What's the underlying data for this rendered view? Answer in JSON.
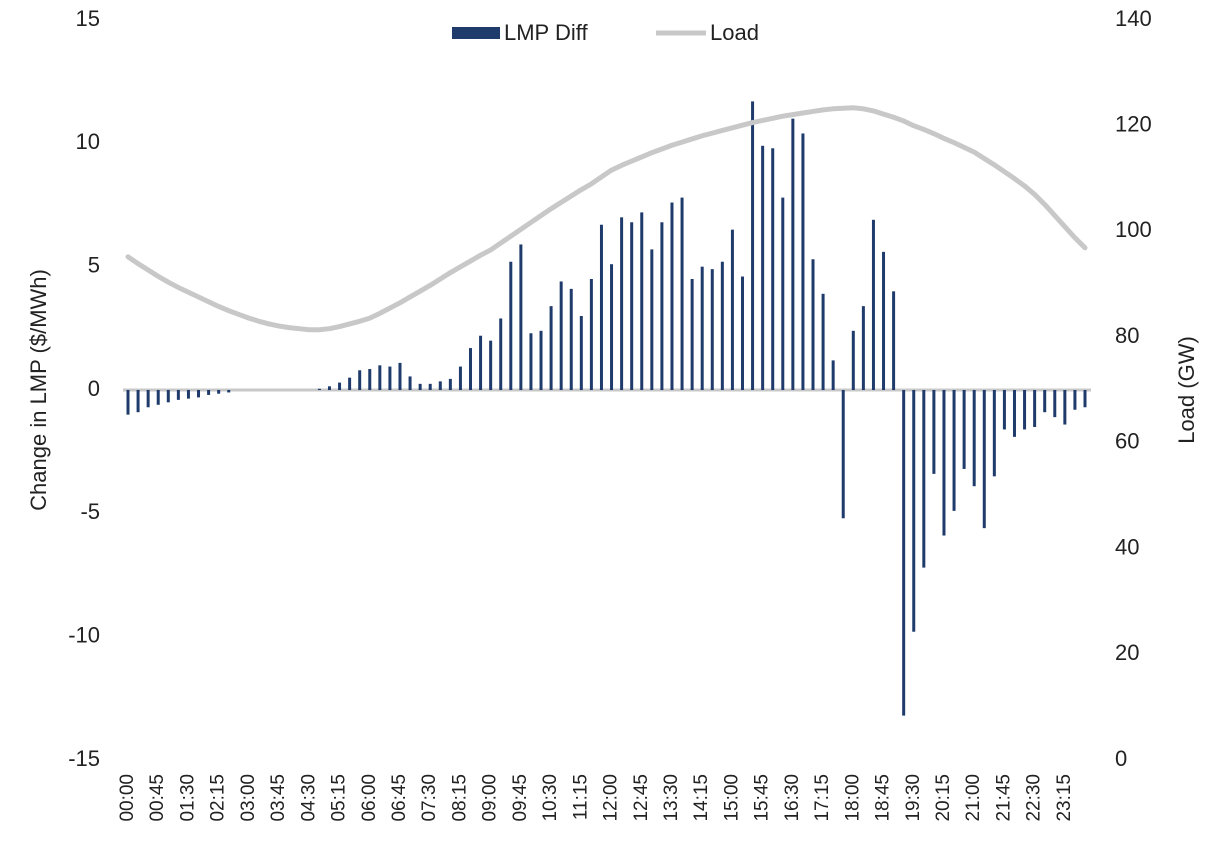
{
  "chart_data": {
    "type": "bar-line",
    "y_label": "Change in LMP ($/MWh)",
    "y2_label": "Load (GW)",
    "categories": [
      "00:00",
      null,
      null,
      "00:45",
      null,
      null,
      "01:30",
      null,
      null,
      "02:15",
      null,
      null,
      "03:00",
      null,
      null,
      "03:45",
      null,
      null,
      "04:30",
      null,
      null,
      "05:15",
      null,
      null,
      "06:00",
      null,
      null,
      "06:45",
      null,
      null,
      "07:30",
      null,
      null,
      "08:15",
      null,
      null,
      "09:00",
      null,
      null,
      "09:45",
      null,
      null,
      "10:30",
      null,
      null,
      "11:15",
      null,
      null,
      "12:00",
      null,
      null,
      "12:45",
      null,
      null,
      "13:30",
      null,
      null,
      "14:15",
      null,
      null,
      "15:00",
      null,
      null,
      "15:45",
      null,
      null,
      "16:30",
      null,
      null,
      "17:15",
      null,
      null,
      "18:00",
      null,
      null,
      "18:45",
      null,
      null,
      "19:30",
      null,
      null,
      "20:15",
      null,
      null,
      "21:00",
      null,
      null,
      "21:45",
      null,
      null,
      "22:30",
      null,
      null,
      "23:15",
      null,
      null
    ],
    "series": [
      {
        "name": "LMP Diff",
        "type": "bar",
        "color": "#1f3b6b",
        "values": [
          -1.0,
          -0.9,
          -0.7,
          -0.6,
          -0.5,
          -0.4,
          -0.35,
          -0.3,
          -0.2,
          -0.15,
          -0.1,
          0,
          0,
          0,
          0,
          0,
          0,
          0,
          0,
          0.05,
          0.15,
          0.3,
          0.5,
          0.8,
          0.85,
          1.0,
          0.95,
          1.1,
          0.55,
          0.25,
          0.25,
          0.35,
          0.45,
          0.95,
          1.7,
          2.2,
          2.0,
          2.9,
          5.2,
          5.9,
          2.3,
          2.4,
          3.4,
          4.4,
          4.1,
          3.0,
          4.5,
          6.7,
          5.1,
          7.0,
          6.8,
          7.2,
          5.7,
          6.8,
          7.6,
          7.8,
          4.5,
          5.0,
          4.9,
          5.2,
          6.5,
          4.6,
          11.7,
          9.9,
          9.8,
          7.8,
          11.0,
          10.4,
          5.3,
          3.9,
          1.2,
          -5.2,
          2.4,
          3.4,
          6.9,
          5.6,
          4.0,
          -13.2,
          -9.8,
          -7.2,
          -3.4,
          -5.9,
          -4.9,
          -3.2,
          -3.9,
          -5.6,
          -3.5,
          -1.6,
          -1.9,
          -1.6,
          -1.5,
          -0.9,
          -1.1,
          -1.4,
          -0.8,
          -0.7
        ]
      },
      {
        "name": "Load",
        "type": "line",
        "axis": "y2",
        "color": "#c8c8c8",
        "values": [
          95.2,
          93.9,
          92.7,
          91.5,
          90.4,
          89.4,
          88.5,
          87.6,
          86.7,
          85.8,
          85.0,
          84.3,
          83.6,
          83.0,
          82.5,
          82.1,
          81.8,
          81.6,
          81.4,
          81.4,
          81.6,
          82.0,
          82.5,
          83.0,
          83.6,
          84.5,
          85.5,
          86.5,
          87.6,
          88.7,
          89.8,
          91.0,
          92.2,
          93.3,
          94.4,
          95.5,
          96.5,
          97.8,
          99.1,
          100.4,
          101.7,
          103.0,
          104.3,
          105.5,
          106.7,
          107.9,
          109.0,
          110.3,
          111.6,
          112.5,
          113.3,
          114.1,
          114.9,
          115.6,
          116.3,
          116.9,
          117.5,
          118.1,
          118.6,
          119.1,
          119.6,
          120.1,
          120.6,
          121.0,
          121.4,
          121.8,
          122.1,
          122.4,
          122.7,
          123.0,
          123.2,
          123.3,
          123.4,
          123.2,
          122.8,
          122.2,
          121.6,
          120.9,
          120.0,
          119.3,
          118.5,
          117.6,
          116.8,
          115.9,
          115.0,
          113.8,
          112.6,
          111.3,
          110.0,
          108.6,
          107.0,
          105.1,
          103.0,
          100.9,
          98.8,
          96.9
        ]
      }
    ],
    "ylim": [
      -15,
      15
    ],
    "yticks": [
      -15,
      -10,
      -5,
      0,
      5,
      10,
      15
    ],
    "y2lim": [
      0,
      140
    ],
    "y2ticks": [
      0,
      20,
      40,
      60,
      80,
      100,
      120,
      140
    ],
    "grid": false,
    "legend": "top"
  }
}
